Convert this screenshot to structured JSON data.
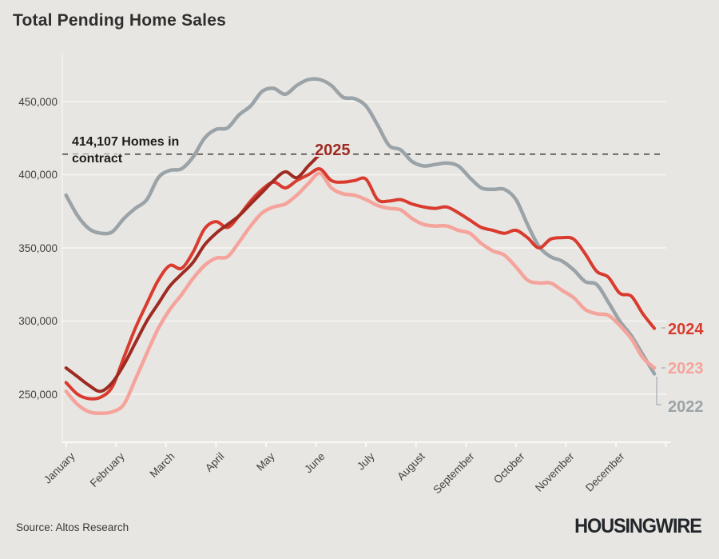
{
  "title": "Total Pending Home Sales",
  "source": "Source: Altos Research",
  "logo": "HOUSINGWIRE",
  "annotation": {
    "line1": "414,107 Homes in",
    "line2": "contract",
    "value": 414107
  },
  "chart_data": {
    "type": "line",
    "title": "Total Pending Home Sales",
    "x_axis": {
      "months": [
        "January",
        "February",
        "March",
        "April",
        "May",
        "June",
        "July",
        "August",
        "September",
        "October",
        "November",
        "December"
      ],
      "sampling": "weekly"
    },
    "y_axis": {
      "tick_labels": [
        "450,000",
        "400,000",
        "350,000",
        "300,000",
        "250,000"
      ],
      "tick_values": [
        450000,
        400000,
        350000,
        300000,
        250000
      ],
      "range": [
        230000,
        470000
      ],
      "grid": true
    },
    "reference_line": {
      "value": 414107,
      "style": "dashed",
      "color": "#3f3e3c"
    },
    "legend_position": "end-of-line-labels",
    "series": [
      {
        "name": "2022",
        "color": "#9aa3a8",
        "values": [
          386000,
          372000,
          363000,
          360000,
          361000,
          370000,
          377000,
          383000,
          398000,
          403000,
          404000,
          412000,
          425000,
          431000,
          432000,
          441000,
          447000,
          457000,
          459000,
          455000,
          461000,
          465000,
          465000,
          461000,
          453000,
          452000,
          447000,
          434000,
          420000,
          417000,
          409000,
          406000,
          407000,
          408000,
          406000,
          398000,
          391000,
          390000,
          390000,
          383000,
          366000,
          351000,
          344000,
          341000,
          335000,
          327000,
          325000,
          313000,
          300000,
          290000,
          277000,
          264000
        ]
      },
      {
        "name": "2023",
        "color": "#f4a49c",
        "values": [
          252000,
          243000,
          238000,
          237000,
          238000,
          243000,
          260000,
          278000,
          295000,
          308000,
          318000,
          329000,
          338000,
          343000,
          344000,
          354000,
          365000,
          374000,
          378000,
          380000,
          386000,
          394000,
          401000,
          391000,
          387000,
          386000,
          383000,
          379000,
          377000,
          376000,
          370000,
          366000,
          365000,
          365000,
          362000,
          360000,
          353000,
          348000,
          345000,
          337000,
          328000,
          326000,
          326000,
          321000,
          316000,
          308000,
          305000,
          304000,
          297000,
          288000,
          275000,
          268000
        ]
      },
      {
        "name": "2024",
        "color": "#d93b2f",
        "values": [
          258000,
          250000,
          247000,
          248000,
          255000,
          275000,
          295000,
          312000,
          328000,
          338000,
          336000,
          347000,
          363000,
          368000,
          364000,
          372000,
          382000,
          390000,
          395000,
          391000,
          396000,
          400000,
          404000,
          396000,
          395000,
          396000,
          397000,
          383000,
          382000,
          383000,
          380000,
          378000,
          377000,
          378000,
          374000,
          369000,
          364000,
          362000,
          360000,
          362000,
          357000,
          350000,
          356000,
          357000,
          356000,
          346000,
          334000,
          330000,
          319000,
          317000,
          305000,
          295000
        ]
      },
      {
        "name": "2025",
        "color": "#9e2b23",
        "values": [
          268000,
          262000,
          256000,
          252000,
          258000,
          270000,
          285000,
          300000,
          312000,
          324000,
          332000,
          340000,
          352000,
          360000,
          366000,
          372000,
          380000,
          388000,
          396000,
          402000,
          398000,
          406000,
          414107
        ]
      }
    ]
  }
}
